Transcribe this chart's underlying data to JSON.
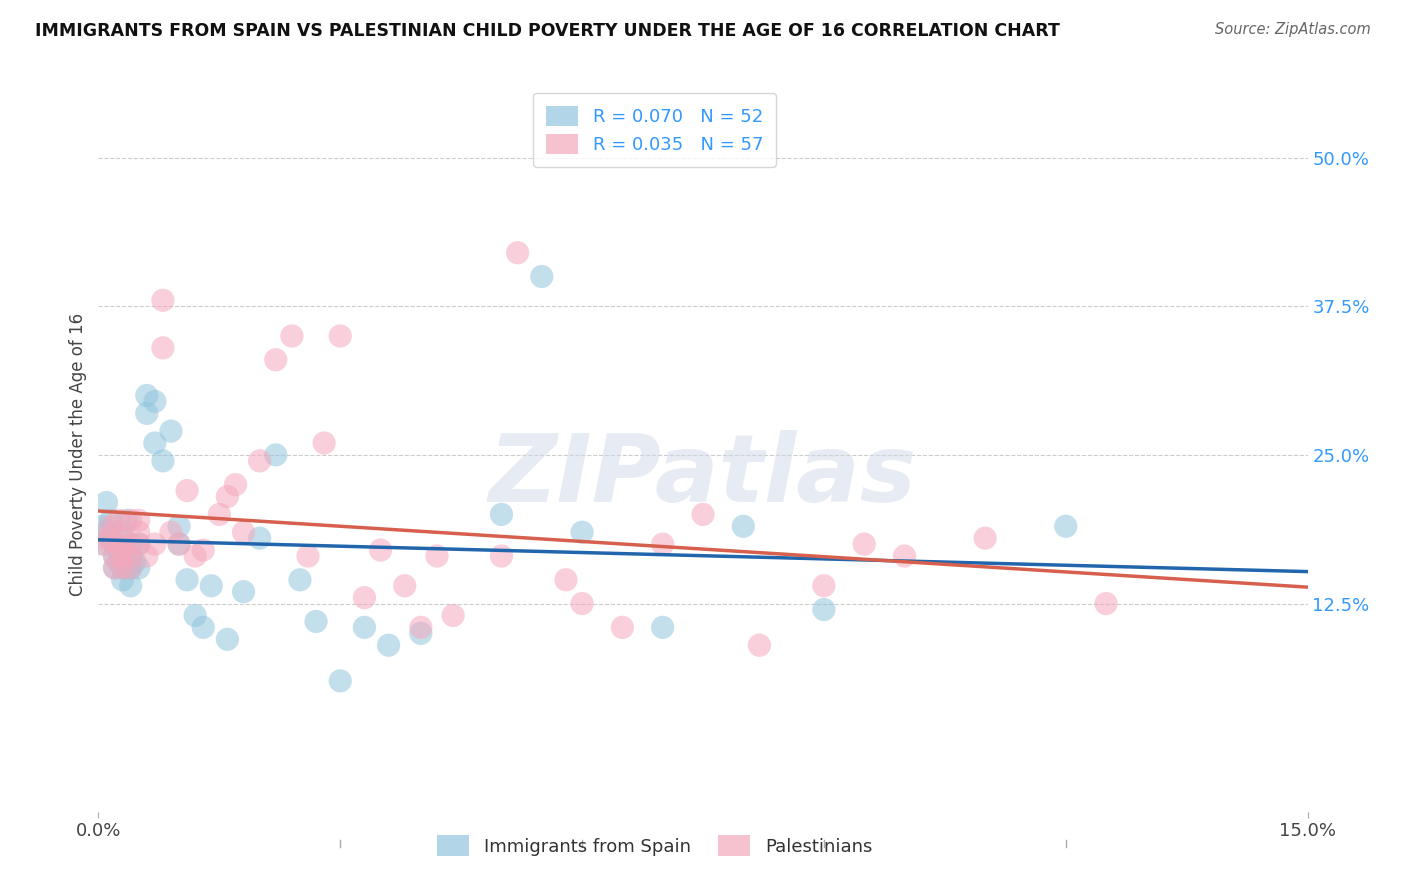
{
  "title": "IMMIGRANTS FROM SPAIN VS PALESTINIAN CHILD POVERTY UNDER THE AGE OF 16 CORRELATION CHART",
  "source": "Source: ZipAtlas.com",
  "ylabel": "Child Poverty Under the Age of 16",
  "xlim": [
    0.0,
    0.15
  ],
  "ylim": [
    -0.05,
    0.55
  ],
  "yticks": [
    0.0,
    0.125,
    0.25,
    0.375,
    0.5
  ],
  "ytick_labels": [
    "",
    "12.5%",
    "25.0%",
    "37.5%",
    "50.0%"
  ],
  "series1_color": "#92c5de",
  "series2_color": "#f4a8bc",
  "series1_label": "Immigrants from Spain",
  "series2_label": "Palestinians",
  "series1_R": 0.07,
  "series1_N": 52,
  "series2_R": 0.035,
  "series2_N": 57,
  "line1_color": "#2166ac",
  "line2_color": "#d6604d",
  "watermark": "ZIPatlas",
  "background_color": "#ffffff",
  "series1_x": [
    0.0005,
    0.0008,
    0.001,
    0.001,
    0.0015,
    0.0015,
    0.002,
    0.002,
    0.002,
    0.0025,
    0.0025,
    0.003,
    0.003,
    0.003,
    0.003,
    0.0035,
    0.004,
    0.004,
    0.004,
    0.004,
    0.0045,
    0.005,
    0.005,
    0.006,
    0.006,
    0.007,
    0.007,
    0.008,
    0.009,
    0.01,
    0.01,
    0.011,
    0.012,
    0.013,
    0.014,
    0.016,
    0.018,
    0.02,
    0.022,
    0.025,
    0.027,
    0.03,
    0.033,
    0.036,
    0.04,
    0.05,
    0.055,
    0.06,
    0.07,
    0.08,
    0.09,
    0.12
  ],
  "series1_y": [
    0.19,
    0.175,
    0.21,
    0.185,
    0.195,
    0.18,
    0.165,
    0.155,
    0.175,
    0.17,
    0.16,
    0.165,
    0.155,
    0.145,
    0.185,
    0.195,
    0.175,
    0.165,
    0.155,
    0.14,
    0.16,
    0.155,
    0.175,
    0.285,
    0.3,
    0.295,
    0.26,
    0.245,
    0.27,
    0.175,
    0.19,
    0.145,
    0.115,
    0.105,
    0.14,
    0.095,
    0.135,
    0.18,
    0.25,
    0.145,
    0.11,
    0.06,
    0.105,
    0.09,
    0.1,
    0.2,
    0.4,
    0.185,
    0.105,
    0.19,
    0.12,
    0.19
  ],
  "series2_x": [
    0.0005,
    0.001,
    0.0015,
    0.002,
    0.002,
    0.002,
    0.002,
    0.0025,
    0.003,
    0.003,
    0.003,
    0.003,
    0.004,
    0.004,
    0.004,
    0.004,
    0.005,
    0.005,
    0.005,
    0.006,
    0.007,
    0.008,
    0.008,
    0.009,
    0.01,
    0.011,
    0.012,
    0.013,
    0.015,
    0.016,
    0.017,
    0.018,
    0.02,
    0.022,
    0.024,
    0.026,
    0.028,
    0.03,
    0.033,
    0.035,
    0.038,
    0.04,
    0.042,
    0.044,
    0.05,
    0.052,
    0.058,
    0.06,
    0.065,
    0.07,
    0.075,
    0.082,
    0.09,
    0.095,
    0.1,
    0.11,
    0.125
  ],
  "series2_y": [
    0.175,
    0.18,
    0.19,
    0.185,
    0.175,
    0.165,
    0.155,
    0.195,
    0.18,
    0.17,
    0.165,
    0.155,
    0.195,
    0.175,
    0.165,
    0.155,
    0.195,
    0.185,
    0.175,
    0.165,
    0.175,
    0.38,
    0.34,
    0.185,
    0.175,
    0.22,
    0.165,
    0.17,
    0.2,
    0.215,
    0.225,
    0.185,
    0.245,
    0.33,
    0.35,
    0.165,
    0.26,
    0.35,
    0.13,
    0.17,
    0.14,
    0.105,
    0.165,
    0.115,
    0.165,
    0.42,
    0.145,
    0.125,
    0.105,
    0.175,
    0.2,
    0.09,
    0.14,
    0.175,
    0.165,
    0.18,
    0.125
  ]
}
